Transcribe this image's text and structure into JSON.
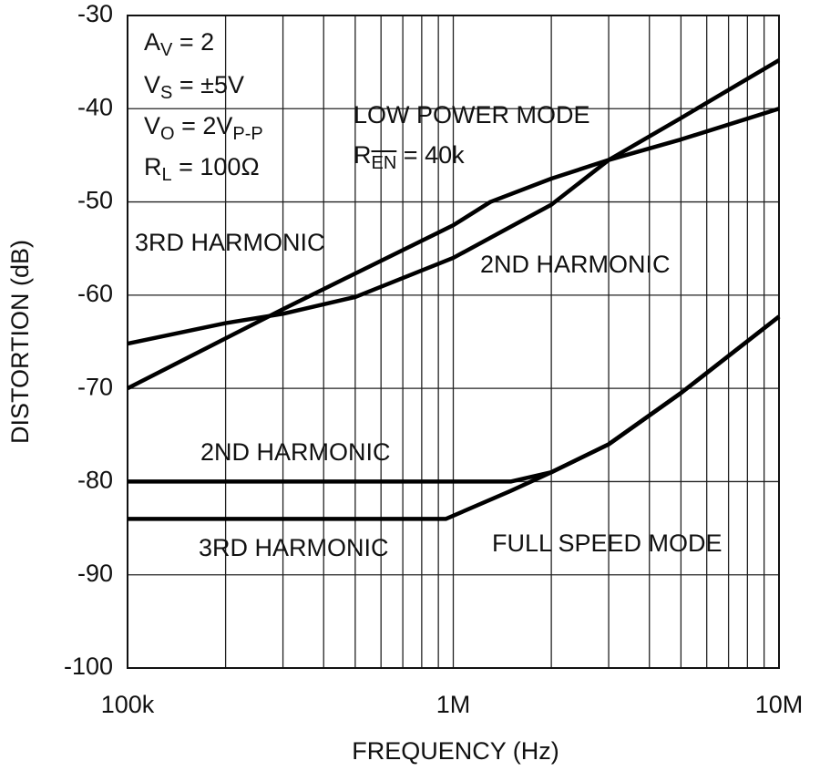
{
  "chart_data": {
    "type": "line",
    "x_label": "FREQUENCY (Hz)",
    "y_label": "DISTORTION (dB)",
    "log_x": true,
    "grid": true,
    "minor_grid": true,
    "xlim": [
      100000,
      10000000
    ],
    "xticks": [
      {
        "value": 100000,
        "label": "100k"
      },
      {
        "value": 1000000,
        "label": "1M"
      },
      {
        "value": 10000000,
        "label": "10M"
      }
    ],
    "ylim": [
      -100,
      -30
    ],
    "yticks": [
      -100,
      -90,
      -80,
      -70,
      -60,
      -50,
      -40,
      -30
    ],
    "series": [
      {
        "color": "#000000",
        "x": [
          100000,
          300000,
          1000000,
          1300000,
          2000000,
          3000000,
          5000000,
          10000000
        ],
        "values": [
          -70,
          -61.5,
          -52.5,
          -50,
          -47.5,
          -45.5,
          -43.3,
          -40
        ]
      },
      {
        "color": "#000000",
        "x": [
          100000,
          200000,
          300000,
          500000,
          1000000,
          2000000,
          3000000,
          5000000,
          10000000
        ],
        "values": [
          -65.2,
          -63,
          -62,
          -60.2,
          -56,
          -50.3,
          -45.5,
          -41,
          -34.8
        ]
      },
      {
        "color": "#000000",
        "x": [
          100000,
          1500000,
          2000000,
          3000000,
          5000000,
          10000000
        ],
        "values": [
          -80,
          -80,
          -79,
          -76,
          -70.5,
          -62.3
        ]
      },
      {
        "color": "#000000",
        "x": [
          100000,
          950000,
          1500000,
          2000000,
          3000000,
          5000000,
          10000000
        ],
        "values": [
          -84,
          -84,
          -81,
          -79,
          -76,
          -70.5,
          -62.3
        ]
      }
    ],
    "annotations": [
      {
        "parts": [
          {
            "t": "A"
          },
          {
            "t": "V",
            "sub": true
          },
          {
            "t": " = 2"
          }
        ]
      },
      {
        "parts": [
          {
            "t": "V"
          },
          {
            "t": "S",
            "sub": true
          },
          {
            "t": " = ±5V"
          }
        ]
      },
      {
        "parts": [
          {
            "t": "V"
          },
          {
            "t": "O",
            "sub": true
          },
          {
            "t": " = 2V"
          },
          {
            "t": "P-P",
            "sub": true
          }
        ]
      },
      {
        "parts": [
          {
            "t": "R"
          },
          {
            "t": "L",
            "sub": true
          },
          {
            "t": " = 100Ω"
          }
        ]
      },
      {
        "parts": [
          {
            "t": "LOW POWER MODE"
          }
        ]
      },
      {
        "parts": [
          {
            "t": "R"
          },
          {
            "t": "EN",
            "sub": true,
            "overline": true
          },
          {
            "t": " = 40k"
          }
        ]
      },
      {
        "parts": [
          {
            "t": "3RD HARMONIC"
          }
        ]
      },
      {
        "parts": [
          {
            "t": "2ND HARMONIC"
          }
        ]
      },
      {
        "parts": [
          {
            "t": "2ND HARMONIC"
          }
        ]
      },
      {
        "parts": [
          {
            "t": "3RD HARMONIC"
          }
        ]
      },
      {
        "parts": [
          {
            "t": "FULL SPEED MODE"
          }
        ]
      }
    ]
  }
}
